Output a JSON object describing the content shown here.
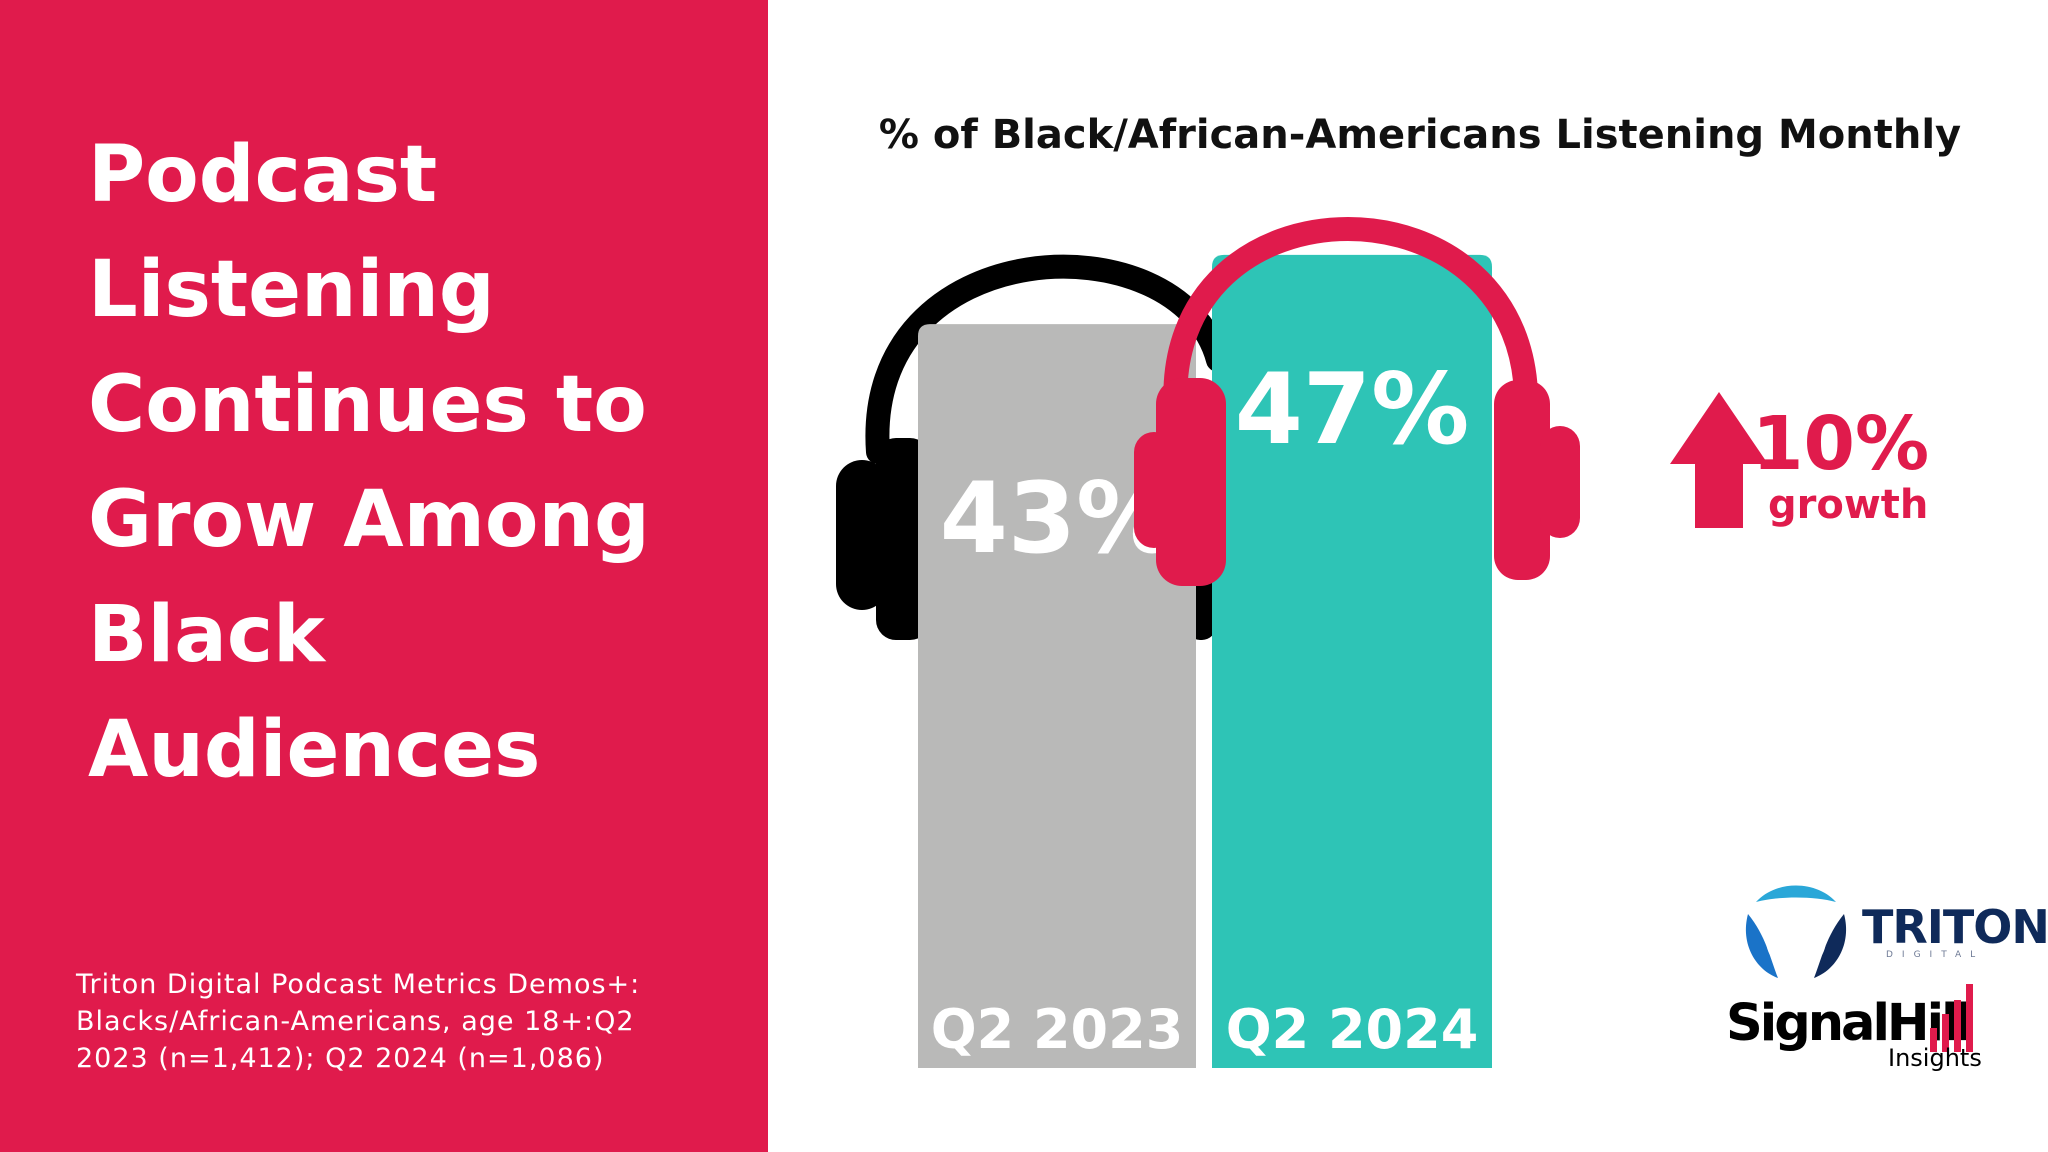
{
  "headline": "Podcast Listening Continues to Grow Among Black Audiences",
  "source_note": "Triton Digital Podcast Metrics Demos+: Blacks/African-Americans, age 18+:Q2 2023 (n=1,412); Q2 2024 (n=1,086)",
  "growth": {
    "value": "10%",
    "label": "growth",
    "icon": "up-arrow-icon"
  },
  "logos": {
    "triton": "TRITON",
    "triton_sub": "DIGITAL",
    "signalhill": "SignalHill",
    "signalhill_sub": "Insights"
  },
  "colors": {
    "brand_red": "#e01b4c",
    "bar_2023": "#b9b9b8",
    "bar_2024": "#2ec4b6",
    "headphones_2023": "#000000",
    "headphones_2024": "#e01b4c"
  },
  "chart_data": {
    "type": "bar",
    "title": "% of Black/African-Americans Listening Monthly",
    "categories": [
      "Q2 2023",
      "Q2 2024"
    ],
    "values": [
      43,
      47
    ],
    "value_labels": [
      "43%",
      "47%"
    ],
    "ylim": [
      0,
      50
    ],
    "grid": false,
    "legend": "none"
  }
}
